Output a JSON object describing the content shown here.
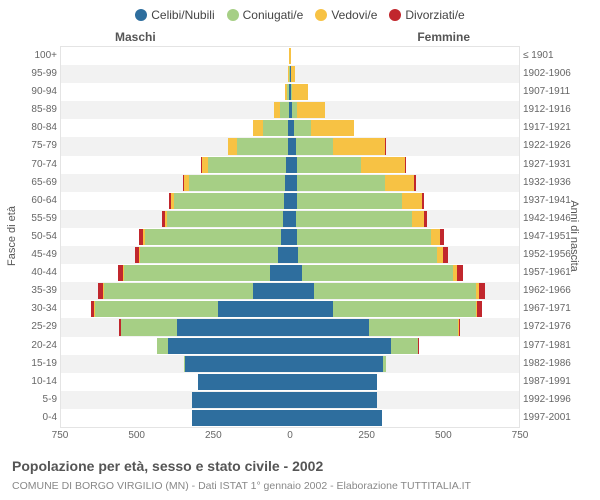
{
  "axis_max": 750,
  "xticks": [
    750,
    500,
    250,
    0,
    250,
    500,
    750
  ],
  "left_axis_title": "Fasce di età",
  "right_axis_title": "Anni di nascita",
  "side_titles": {
    "maschi": "Maschi",
    "femmine": "Femmine"
  },
  "legend_items": [
    {
      "label": "Celibi/Nubili",
      "color": "#2e6e9e"
    },
    {
      "label": "Coniugati/e",
      "color": "#a6cf85"
    },
    {
      "label": "Vedovi/e",
      "color": "#f7c244"
    },
    {
      "label": "Divorziati/e",
      "color": "#c1272d"
    }
  ],
  "caption1": "Popolazione per età, sesso e stato civile - 2002",
  "caption2": "COMUNE DI BORGO VIRGILIO (MN) - Dati ISTAT 1° gennaio 2002 - Elaborazione TUTTITALIA.IT",
  "row_bands_bg": [
    "#ffffff",
    "#f2f2f2"
  ],
  "grid_color": "#e0e0e0",
  "dash_color": "#999999",
  "rows": [
    {
      "age": "100+",
      "year": "≤ 1901",
      "m": {
        "single": 1,
        "married": 0,
        "widowed": 1,
        "divorced": 0
      },
      "f": {
        "single": 0,
        "married": 0,
        "widowed": 1,
        "divorced": 0
      }
    },
    {
      "age": "95-99",
      "year": "1902-1906",
      "m": {
        "single": 1,
        "married": 1,
        "widowed": 4,
        "divorced": 0
      },
      "f": {
        "single": 2,
        "married": 1,
        "widowed": 15,
        "divorced": 0
      }
    },
    {
      "age": "90-94",
      "year": "1907-1911",
      "m": {
        "single": 2,
        "married": 8,
        "widowed": 8,
        "divorced": 0
      },
      "f": {
        "single": 4,
        "married": 3,
        "widowed": 52,
        "divorced": 0
      }
    },
    {
      "age": "85-89",
      "year": "1912-1916",
      "m": {
        "single": 3,
        "married": 30,
        "widowed": 18,
        "divorced": 0
      },
      "f": {
        "single": 8,
        "married": 14,
        "widowed": 92,
        "divorced": 0
      }
    },
    {
      "age": "80-84",
      "year": "1917-1921",
      "m": {
        "single": 5,
        "married": 85,
        "widowed": 30,
        "divorced": 0
      },
      "f": {
        "single": 14,
        "married": 55,
        "widowed": 140,
        "divorced": 0
      }
    },
    {
      "age": "75-79",
      "year": "1922-1926",
      "m": {
        "single": 8,
        "married": 165,
        "widowed": 30,
        "divorced": 0
      },
      "f": {
        "single": 20,
        "married": 120,
        "widowed": 170,
        "divorced": 2
      }
    },
    {
      "age": "70-74",
      "year": "1927-1931",
      "m": {
        "single": 12,
        "married": 255,
        "widowed": 22,
        "divorced": 2
      },
      "f": {
        "single": 22,
        "married": 210,
        "widowed": 145,
        "divorced": 3
      }
    },
    {
      "age": "65-69",
      "year": "1932-1936",
      "m": {
        "single": 16,
        "married": 315,
        "widowed": 15,
        "divorced": 4
      },
      "f": {
        "single": 22,
        "married": 290,
        "widowed": 95,
        "divorced": 5
      }
    },
    {
      "age": "60-64",
      "year": "1937-1941",
      "m": {
        "single": 20,
        "married": 360,
        "widowed": 10,
        "divorced": 5
      },
      "f": {
        "single": 22,
        "married": 345,
        "widowed": 65,
        "divorced": 7
      }
    },
    {
      "age": "55-59",
      "year": "1942-1946",
      "m": {
        "single": 22,
        "married": 380,
        "widowed": 8,
        "divorced": 8
      },
      "f": {
        "single": 20,
        "married": 380,
        "widowed": 40,
        "divorced": 10
      }
    },
    {
      "age": "50-54",
      "year": "1947-1951",
      "m": {
        "single": 30,
        "married": 445,
        "widowed": 6,
        "divorced": 12
      },
      "f": {
        "single": 22,
        "married": 440,
        "widowed": 28,
        "divorced": 14
      }
    },
    {
      "age": "45-49",
      "year": "1952-1956",
      "m": {
        "single": 40,
        "married": 450,
        "widowed": 4,
        "divorced": 15
      },
      "f": {
        "single": 26,
        "married": 455,
        "widowed": 20,
        "divorced": 16
      }
    },
    {
      "age": "40-44",
      "year": "1957-1961",
      "m": {
        "single": 65,
        "married": 480,
        "widowed": 3,
        "divorced": 16
      },
      "f": {
        "single": 40,
        "married": 495,
        "widowed": 12,
        "divorced": 18
      }
    },
    {
      "age": "35-39",
      "year": "1962-1966",
      "m": {
        "single": 120,
        "married": 490,
        "widowed": 2,
        "divorced": 18
      },
      "f": {
        "single": 80,
        "married": 530,
        "widowed": 8,
        "divorced": 20
      }
    },
    {
      "age": "30-34",
      "year": "1967-1971",
      "m": {
        "single": 235,
        "married": 405,
        "widowed": 1,
        "divorced": 12
      },
      "f": {
        "single": 140,
        "married": 470,
        "widowed": 4,
        "divorced": 15
      }
    },
    {
      "age": "25-29",
      "year": "1972-1976",
      "m": {
        "single": 370,
        "married": 185,
        "widowed": 0,
        "divorced": 4
      },
      "f": {
        "single": 260,
        "married": 290,
        "widowed": 2,
        "divorced": 6
      }
    },
    {
      "age": "20-24",
      "year": "1977-1981",
      "m": {
        "single": 400,
        "married": 35,
        "widowed": 0,
        "divorced": 0
      },
      "f": {
        "single": 330,
        "married": 90,
        "widowed": 0,
        "divorced": 2
      }
    },
    {
      "age": "15-19",
      "year": "1982-1986",
      "m": {
        "single": 345,
        "married": 2,
        "widowed": 0,
        "divorced": 0
      },
      "f": {
        "single": 305,
        "married": 8,
        "widowed": 0,
        "divorced": 0
      }
    },
    {
      "age": "10-14",
      "year": "1987-1991",
      "m": {
        "single": 300,
        "married": 0,
        "widowed": 0,
        "divorced": 0
      },
      "f": {
        "single": 285,
        "married": 0,
        "widowed": 0,
        "divorced": 0
      }
    },
    {
      "age": "5-9",
      "year": "1992-1996",
      "m": {
        "single": 320,
        "married": 0,
        "widowed": 0,
        "divorced": 0
      },
      "f": {
        "single": 285,
        "married": 0,
        "widowed": 0,
        "divorced": 0
      }
    },
    {
      "age": "0-4",
      "year": "1997-2001",
      "m": {
        "single": 320,
        "married": 0,
        "widowed": 0,
        "divorced": 0
      },
      "f": {
        "single": 300,
        "married": 0,
        "widowed": 0,
        "divorced": 0
      }
    }
  ]
}
